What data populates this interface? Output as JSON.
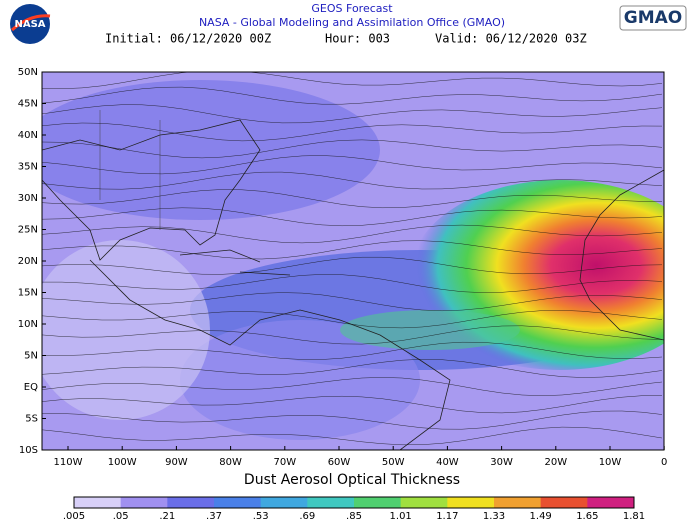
{
  "header": {
    "logo_left": "NASA",
    "logo_right": "GMAO",
    "title": "GEOS Forecast",
    "subtitle": "NASA - Global Modeling and Assimilation Office (GMAO)",
    "initial": "Initial: 06/12/2020 00Z",
    "hour": "Hour: 003",
    "valid": "Valid: 06/12/2020 03Z"
  },
  "map": {
    "lat_labels": [
      "50N",
      "45N",
      "40N",
      "35N",
      "30N",
      "25N",
      "20N",
      "15N",
      "10N",
      "5N",
      "EQ",
      "5S",
      "10S"
    ],
    "lon_labels": [
      "110W",
      "100W",
      "90W",
      "80W",
      "70W",
      "60W",
      "50W",
      "40W",
      "30W",
      "20W",
      "10W",
      "0"
    ]
  },
  "colorbar": {
    "title": "Dust Aerosol Optical Thickness",
    "ticks": [
      ".005",
      ".05",
      ".21",
      ".37",
      ".53",
      ".69",
      ".85",
      "1.01",
      "1.17",
      "1.33",
      "1.49",
      "1.65",
      "1.81"
    ]
  }
}
